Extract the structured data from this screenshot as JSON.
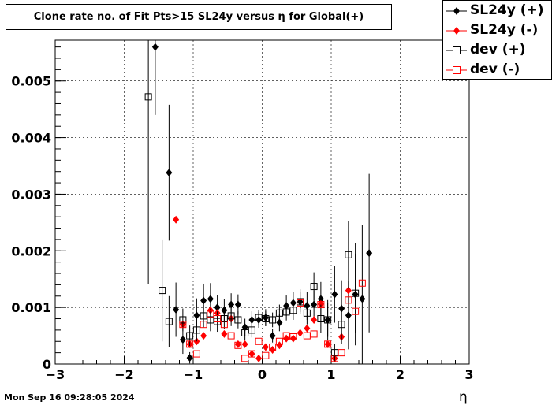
{
  "chart_data": {
    "type": "scatter",
    "title": "Clone rate no. of Fit Pts>15 SL24y versus η for Global(+)",
    "xlabel": "η",
    "ylabel": "",
    "xlim": [
      -3,
      3
    ],
    "ylim": [
      0,
      0.00572
    ],
    "x_ticks": [
      -3,
      -2,
      -1,
      0,
      1,
      2,
      3
    ],
    "y_ticks": [
      0,
      0.001,
      0.002,
      0.003,
      0.004,
      0.005
    ],
    "y_tick_labels": [
      "0",
      "0.001",
      "0.002",
      "0.003",
      "0.004",
      "0.005"
    ],
    "x_tick_labels": [
      "−3",
      "−2",
      "−1",
      "0",
      "1",
      "2",
      "3"
    ],
    "legend_position": "top-right",
    "series": [
      {
        "name": "SL24y (+)",
        "marker": "filled-diamond",
        "color": "#000000",
        "points": [
          {
            "x": -1.55,
            "y": 0.0056,
            "err": 0.0012
          },
          {
            "x": -1.35,
            "y": 0.00338,
            "err": 0.0012
          },
          {
            "x": -1.25,
            "y": 0.00096,
            "err": 0.00048
          },
          {
            "x": -1.15,
            "y": 0.00043,
            "err": 0.00025
          },
          {
            "x": -1.05,
            "y": 0.00011,
            "err": 0.0001
          },
          {
            "x": -0.95,
            "y": 0.00086,
            "err": 0.0003
          },
          {
            "x": -0.85,
            "y": 0.00112,
            "err": 0.0003
          },
          {
            "x": -0.75,
            "y": 0.00115,
            "err": 0.00028
          },
          {
            "x": -0.65,
            "y": 0.001,
            "err": 0.00022
          },
          {
            "x": -0.55,
            "y": 0.00095,
            "err": 0.0002
          },
          {
            "x": -0.45,
            "y": 0.00105,
            "err": 0.0002
          },
          {
            "x": -0.35,
            "y": 0.00105,
            "err": 0.00018
          },
          {
            "x": -0.25,
            "y": 0.00065,
            "err": 0.00015
          },
          {
            "x": -0.15,
            "y": 0.00078,
            "err": 0.00015
          },
          {
            "x": -0.05,
            "y": 0.00078,
            "err": 0.00014
          },
          {
            "x": 0.05,
            "y": 0.00082,
            "err": 0.00015
          },
          {
            "x": 0.15,
            "y": 0.0005,
            "err": 0.00012
          },
          {
            "x": 0.25,
            "y": 0.00073,
            "err": 0.00015
          },
          {
            "x": 0.35,
            "y": 0.00103,
            "err": 0.00018
          },
          {
            "x": 0.45,
            "y": 0.00108,
            "err": 0.0002
          },
          {
            "x": 0.55,
            "y": 0.0011,
            "err": 0.00022
          },
          {
            "x": 0.65,
            "y": 0.00103,
            "err": 0.00025
          },
          {
            "x": 0.75,
            "y": 0.00105,
            "err": 0.00025
          },
          {
            "x": 0.85,
            "y": 0.00115,
            "err": 0.0003
          },
          {
            "x": 0.95,
            "y": 0.00078,
            "err": 0.00035
          },
          {
            "x": 1.05,
            "y": 0.00123,
            "err": 0.0005
          },
          {
            "x": 1.15,
            "y": 0.00098,
            "err": 0.0005
          },
          {
            "x": 1.25,
            "y": 0.00086,
            "err": 0.0006
          },
          {
            "x": 1.35,
            "y": 0.00123,
            "err": 0.0009
          },
          {
            "x": 1.45,
            "y": 0.00115,
            "err": 0.0013
          },
          {
            "x": 1.55,
            "y": 0.00196,
            "err": 0.0014
          }
        ]
      },
      {
        "name": "SL24y (-)",
        "marker": "filled-diamond",
        "color": "#ff0000",
        "points": [
          {
            "x": -1.25,
            "y": 0.00255,
            "err": 0.0
          },
          {
            "x": -1.15,
            "y": 0.0007,
            "err": 0.0
          },
          {
            "x": -1.05,
            "y": 0.00035,
            "err": 0.0
          },
          {
            "x": -0.95,
            "y": 0.0004,
            "err": 0.0
          },
          {
            "x": -0.85,
            "y": 0.0005,
            "err": 0.0
          },
          {
            "x": -0.75,
            "y": 0.00095,
            "err": 0.0
          },
          {
            "x": -0.65,
            "y": 0.0009,
            "err": 0.0
          },
          {
            "x": -0.55,
            "y": 0.00053,
            "err": 0.0
          },
          {
            "x": -0.45,
            "y": 0.0008,
            "err": 0.0
          },
          {
            "x": -0.35,
            "y": 0.00035,
            "err": 0.0
          },
          {
            "x": -0.25,
            "y": 0.00035,
            "err": 0.0
          },
          {
            "x": -0.15,
            "y": 0.00018,
            "err": 0.0
          },
          {
            "x": -0.05,
            "y": 0.0001,
            "err": 0.0
          },
          {
            "x": 0.05,
            "y": 0.0003,
            "err": 0.0
          },
          {
            "x": 0.15,
            "y": 0.00025,
            "err": 0.0
          },
          {
            "x": 0.25,
            "y": 0.00033,
            "err": 0.0
          },
          {
            "x": 0.35,
            "y": 0.00045,
            "err": 0.0
          },
          {
            "x": 0.45,
            "y": 0.00045,
            "err": 0.0
          },
          {
            "x": 0.55,
            "y": 0.00055,
            "err": 0.0
          },
          {
            "x": 0.65,
            "y": 0.00063,
            "err": 0.0
          },
          {
            "x": 0.75,
            "y": 0.00078,
            "err": 0.0
          },
          {
            "x": 0.85,
            "y": 0.00106,
            "err": 0.0
          },
          {
            "x": 0.95,
            "y": 0.00035,
            "err": 0.0
          },
          {
            "x": 1.05,
            "y": 0.0001,
            "err": 0.0
          },
          {
            "x": 1.15,
            "y": 0.00048,
            "err": 0.0
          },
          {
            "x": 1.25,
            "y": 0.0013,
            "err": 0.0
          }
        ]
      },
      {
        "name": "dev (+)",
        "marker": "open-square",
        "color": "#000000",
        "points": [
          {
            "x": -1.65,
            "y": 0.00472,
            "err": 0.0033
          },
          {
            "x": -1.45,
            "y": 0.0013,
            "err": 0.0009
          },
          {
            "x": -1.35,
            "y": 0.00075,
            "err": 0.00045
          },
          {
            "x": -1.15,
            "y": 0.00078,
            "err": 0.0002
          },
          {
            "x": -1.05,
            "y": 0.0005,
            "err": 0.00018
          },
          {
            "x": -0.95,
            "y": 0.0006,
            "err": 0.0002
          },
          {
            "x": -0.85,
            "y": 0.00085,
            "err": 0.0002
          },
          {
            "x": -0.75,
            "y": 0.00078,
            "err": 0.0002
          },
          {
            "x": -0.65,
            "y": 0.00075,
            "err": 0.00018
          },
          {
            "x": -0.55,
            "y": 0.0008,
            "err": 0.00018
          },
          {
            "x": -0.45,
            "y": 0.00085,
            "err": 0.00018
          },
          {
            "x": -0.35,
            "y": 0.00078,
            "err": 0.00015
          },
          {
            "x": -0.25,
            "y": 0.00055,
            "err": 0.00013
          },
          {
            "x": -0.15,
            "y": 0.0006,
            "err": 0.00013
          },
          {
            "x": -0.05,
            "y": 0.00082,
            "err": 0.00013
          },
          {
            "x": 0.05,
            "y": 0.0008,
            "err": 0.00013
          },
          {
            "x": 0.15,
            "y": 0.00078,
            "err": 0.00013
          },
          {
            "x": 0.25,
            "y": 0.0009,
            "err": 0.00015
          },
          {
            "x": 0.35,
            "y": 0.00092,
            "err": 0.00015
          },
          {
            "x": 0.45,
            "y": 0.00095,
            "err": 0.00017
          },
          {
            "x": 0.55,
            "y": 0.0011,
            "err": 0.00018
          },
          {
            "x": 0.65,
            "y": 0.0009,
            "err": 0.0002
          },
          {
            "x": 0.75,
            "y": 0.00137,
            "err": 0.00025
          },
          {
            "x": 0.85,
            "y": 0.0008,
            "err": 0.00025
          },
          {
            "x": 0.95,
            "y": 0.00078,
            "err": 0.0003
          },
          {
            "x": 1.05,
            "y": 0.0002,
            "err": 0.00015
          },
          {
            "x": 1.15,
            "y": 0.0007,
            "err": 0.00035
          },
          {
            "x": 1.25,
            "y": 0.00193,
            "err": 0.0006
          },
          {
            "x": 1.35,
            "y": 0.00125,
            "err": 0.0007
          }
        ]
      },
      {
        "name": "dev (-)",
        "marker": "open-square",
        "color": "#ff0000",
        "points": [
          {
            "x": -1.15,
            "y": 0.0007,
            "err": 0.0
          },
          {
            "x": -1.05,
            "y": 0.00035,
            "err": 0.0
          },
          {
            "x": -0.95,
            "y": 0.00018,
            "err": 0.0
          },
          {
            "x": -0.85,
            "y": 0.0007,
            "err": 0.0
          },
          {
            "x": -0.75,
            "y": 0.00088,
            "err": 0.0
          },
          {
            "x": -0.65,
            "y": 0.0008,
            "err": 0.0
          },
          {
            "x": -0.55,
            "y": 0.0007,
            "err": 0.0
          },
          {
            "x": -0.45,
            "y": 0.0005,
            "err": 0.0
          },
          {
            "x": -0.35,
            "y": 0.00033,
            "err": 0.0
          },
          {
            "x": -0.25,
            "y": 0.0001,
            "err": 0.0
          },
          {
            "x": -0.15,
            "y": 0.00018,
            "err": 0.0
          },
          {
            "x": -0.05,
            "y": 0.0004,
            "err": 0.0
          },
          {
            "x": 0.05,
            "y": 0.00015,
            "err": 0.0
          },
          {
            "x": 0.15,
            "y": 0.0003,
            "err": 0.0
          },
          {
            "x": 0.25,
            "y": 0.0004,
            "err": 0.0
          },
          {
            "x": 0.35,
            "y": 0.0005,
            "err": 0.0
          },
          {
            "x": 0.45,
            "y": 0.00048,
            "err": 0.0
          },
          {
            "x": 0.55,
            "y": 0.00108,
            "err": 0.0
          },
          {
            "x": 0.65,
            "y": 0.0005,
            "err": 0.0
          },
          {
            "x": 0.75,
            "y": 0.00053,
            "err": 0.0
          },
          {
            "x": 0.85,
            "y": 0.00105,
            "err": 0.0
          },
          {
            "x": 0.95,
            "y": 0.00035,
            "err": 0.0
          },
          {
            "x": 1.05,
            "y": 0.0001,
            "err": 0.0
          },
          {
            "x": 1.15,
            "y": 0.0002,
            "err": 0.0
          },
          {
            "x": 1.25,
            "y": 0.00113,
            "err": 0.0
          },
          {
            "x": 1.35,
            "y": 0.00093,
            "err": 0.0
          },
          {
            "x": 1.45,
            "y": 0.00143,
            "err": 0.0
          }
        ]
      }
    ]
  },
  "footer": {
    "timestamp": "Mon Sep 16 09:28:05 2024"
  }
}
